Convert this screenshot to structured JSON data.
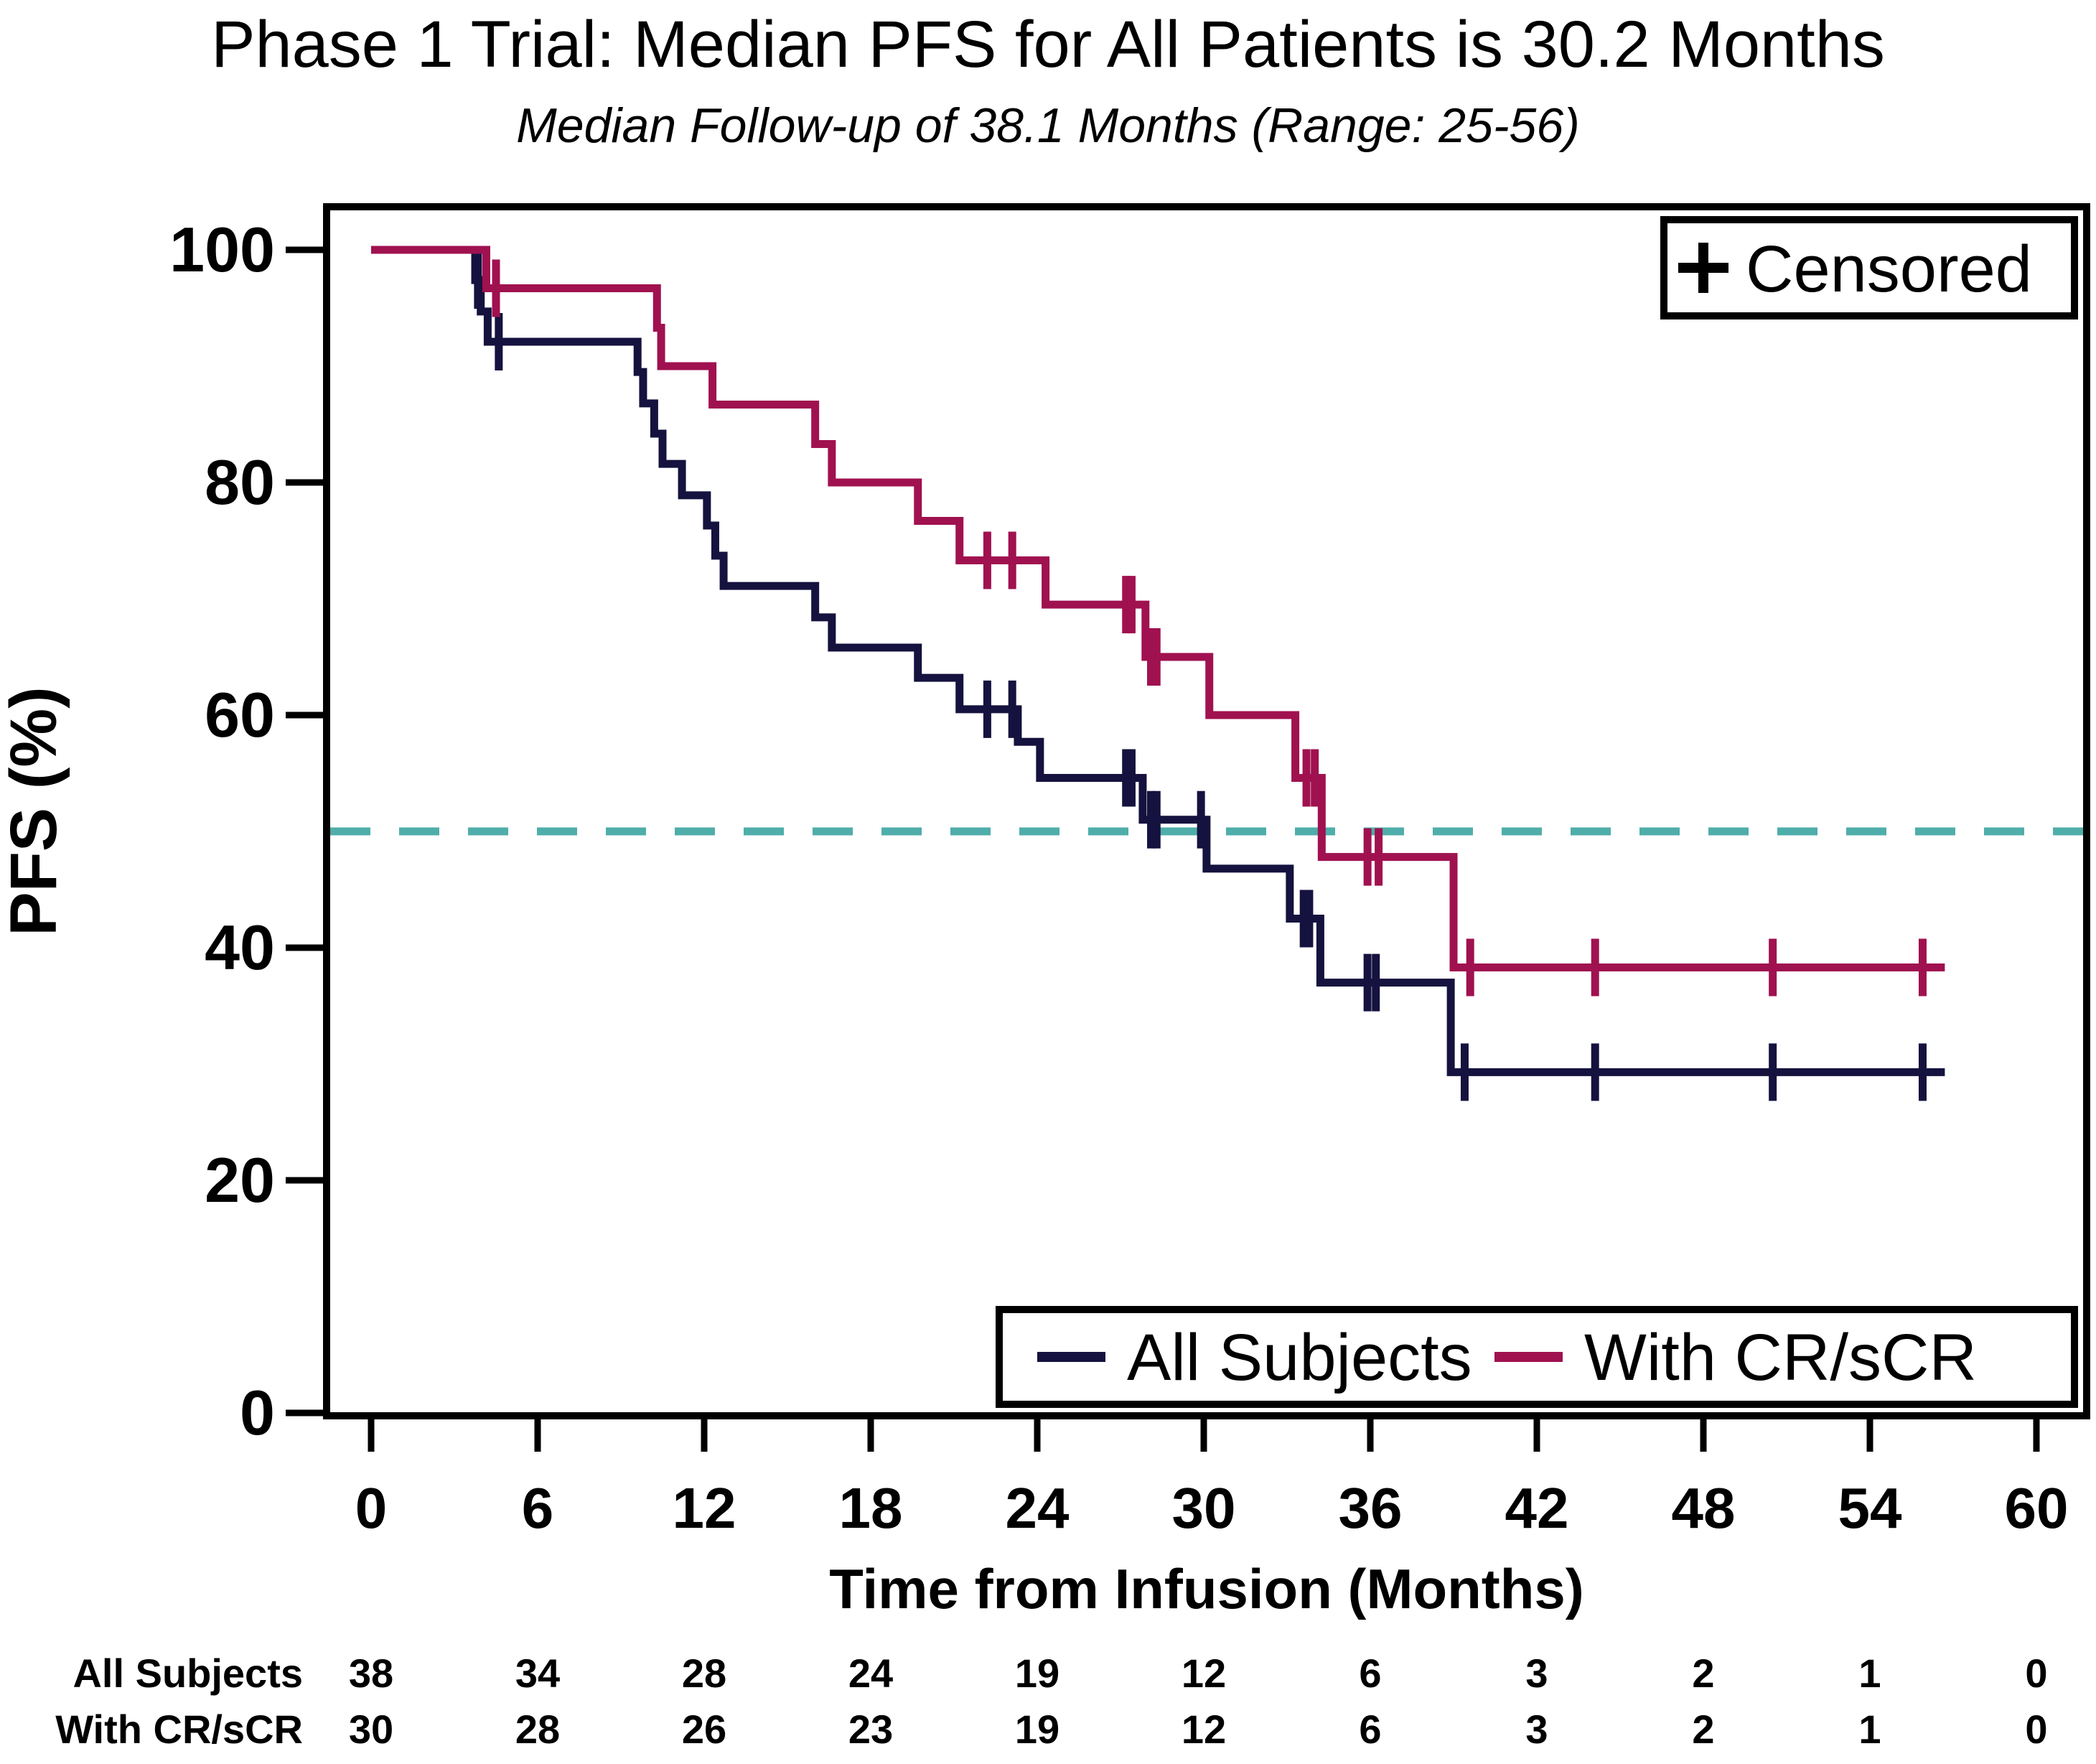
{
  "title": "Phase 1 Trial: Median PFS for All Patients is 30.2 Months",
  "subtitle": "Median Follow-up of 38.1 Months (Range: 25-56)",
  "legend": {
    "censored_marker": "+",
    "censored_label": "Censored"
  },
  "chart_data": {
    "type": "line",
    "subtype": "kaplan-meier-step",
    "title": "Phase 1 Trial: Median PFS for All Patients is 30.2 Months",
    "subtitle": "Median Follow-up of 38.1 Months (Range: 25-56)",
    "xlabel": "Time from Infusion (Months)",
    "ylabel": "PFS (%)",
    "xlim": [
      0,
      60
    ],
    "ylim": [
      0,
      100
    ],
    "x_ticks": [
      0,
      6,
      12,
      18,
      24,
      30,
      36,
      42,
      48,
      54,
      60
    ],
    "y_ticks": [
      0,
      20,
      40,
      60,
      80,
      100
    ],
    "grid": false,
    "legend_position": "bottom-right-inside",
    "median_line": {
      "y": 50,
      "color": "#4FADAA",
      "style": "dashed"
    },
    "series": [
      {
        "name": "All Subjects",
        "color": "#15123F",
        "end_time": 56.7,
        "steps": [
          [
            0,
            100
          ],
          [
            3.75,
            97.4
          ],
          [
            3.95,
            94.7
          ],
          [
            4.2,
            92.1
          ],
          [
            9.6,
            89.5
          ],
          [
            9.8,
            86.8
          ],
          [
            10.2,
            84.2
          ],
          [
            10.5,
            81.6
          ],
          [
            11.2,
            78.9
          ],
          [
            12.1,
            76.3
          ],
          [
            12.4,
            73.7
          ],
          [
            12.7,
            71.1
          ],
          [
            16.0,
            68.4
          ],
          [
            16.6,
            65.8
          ],
          [
            19.7,
            63.2
          ],
          [
            21.2,
            60.5
          ],
          [
            23.3,
            57.7
          ],
          [
            24.1,
            54.6
          ],
          [
            27.8,
            51.0
          ],
          [
            30.1,
            46.8
          ],
          [
            33.1,
            42.5
          ],
          [
            34.2,
            37.0
          ],
          [
            38.9,
            29.3
          ]
        ],
        "censors": [
          [
            3.85,
            97.4
          ],
          [
            4.6,
            92.1
          ],
          [
            22.2,
            60.5
          ],
          [
            23.1,
            60.5
          ],
          [
            27.2,
            54.6
          ],
          [
            27.4,
            54.6
          ],
          [
            28.1,
            51.0
          ],
          [
            28.3,
            51.0
          ],
          [
            29.9,
            51.0
          ],
          [
            33.6,
            42.5
          ],
          [
            33.8,
            42.5
          ],
          [
            35.9,
            37.0
          ],
          [
            36.2,
            37.0
          ],
          [
            39.4,
            29.3
          ],
          [
            44.1,
            29.3
          ],
          [
            50.5,
            29.3
          ],
          [
            55.9,
            29.3
          ]
        ]
      },
      {
        "name": "With CR/sCR",
        "color": "#A01150",
        "end_time": 56.7,
        "steps": [
          [
            0,
            100
          ],
          [
            4.15,
            96.7
          ],
          [
            10.3,
            93.3
          ],
          [
            10.45,
            90.0
          ],
          [
            12.3,
            86.7
          ],
          [
            16.0,
            83.3
          ],
          [
            16.6,
            80.0
          ],
          [
            19.7,
            76.7
          ],
          [
            21.2,
            73.3
          ],
          [
            24.3,
            69.5
          ],
          [
            27.9,
            65.0
          ],
          [
            30.2,
            60.0
          ],
          [
            33.3,
            54.6
          ],
          [
            34.25,
            47.8
          ],
          [
            39.0,
            38.3
          ]
        ],
        "censors": [
          [
            4.5,
            96.7
          ],
          [
            22.2,
            73.3
          ],
          [
            23.1,
            73.3
          ],
          [
            27.2,
            69.5
          ],
          [
            27.4,
            69.5
          ],
          [
            28.1,
            65.0
          ],
          [
            28.3,
            65.0
          ],
          [
            33.7,
            54.6
          ],
          [
            34.0,
            54.6
          ],
          [
            35.9,
            47.8
          ],
          [
            36.3,
            47.8
          ],
          [
            39.6,
            38.3
          ],
          [
            44.1,
            38.3
          ],
          [
            50.5,
            38.3
          ],
          [
            55.9,
            38.3
          ]
        ]
      }
    ],
    "risk_table": {
      "times": [
        0,
        6,
        12,
        18,
        24,
        30,
        36,
        42,
        48,
        54,
        60
      ],
      "rows": [
        {
          "label": "All Subjects",
          "counts": [
            38,
            34,
            28,
            24,
            19,
            12,
            6,
            3,
            2,
            1,
            0
          ]
        },
        {
          "label": "With CR/sCR",
          "counts": [
            30,
            28,
            26,
            23,
            19,
            12,
            6,
            3,
            2,
            1,
            0
          ]
        }
      ]
    }
  }
}
